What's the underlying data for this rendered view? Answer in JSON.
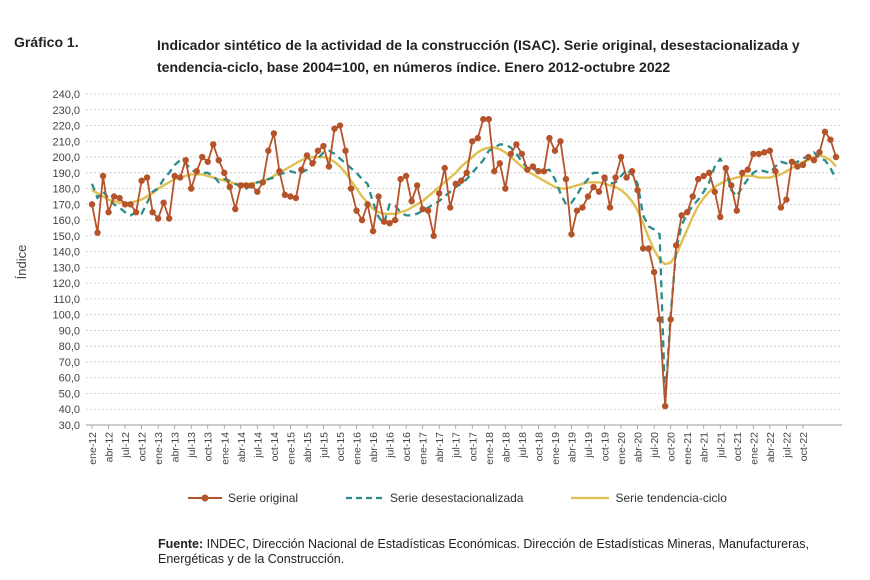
{
  "header": {
    "figure_label": "Gráfico 1.",
    "title": "Indicador sintético de la actividad de la construcción (ISAC). Serie original, desestacionalizada y tendencia-ciclo, base 2004=100, en números índice. Enero 2012-octubre 2022"
  },
  "footer": {
    "source_label": "Fuente:",
    "source_text": " INDEC, Dirección Nacional de Estadísticas Económicas. Dirección de Estadísticas Mineras, Manufactureras, Energéticas y de la Construcción."
  },
  "chart_data": {
    "type": "line",
    "title": "Indicador sintético de la actividad de la construcción (ISAC). Serie original, desestacionalizada y tendencia-ciclo, base 2004=100, en números índice. Enero 2012-octubre 2022",
    "ylabel": "Índice",
    "xlabel": "",
    "ylim": [
      30,
      240
    ],
    "ytick_step": 10,
    "grid": true,
    "legend_position": "bottom",
    "x_tick_labels": [
      "ene-12",
      "abr-12",
      "jul-12",
      "oct-12",
      "ene-13",
      "abr-13",
      "jul-13",
      "oct-13",
      "ene-14",
      "abr-14",
      "jul-14",
      "oct-14",
      "ene-15",
      "abr-15",
      "jul-15",
      "oct-15",
      "ene-16",
      "abr-16",
      "jul-16",
      "oct-16",
      "ene-17",
      "abr-17",
      "jul-17",
      "oct-17",
      "ene-18",
      "abr-18",
      "jul-18",
      "oct-18",
      "ene-19",
      "abr-19",
      "jul-19",
      "oct-19",
      "ene-20",
      "abr-20",
      "jul-20",
      "oct-20",
      "ene-21",
      "abr-21",
      "jul-21",
      "oct-21",
      "ene-22",
      "abr-22",
      "jul-22",
      "oct-22"
    ],
    "series": [
      {
        "name": "Serie original",
        "color": "#b5532a",
        "style": "solid-markers",
        "values": [
          170,
          152,
          188,
          165,
          175,
          174,
          170,
          170,
          165,
          185,
          187,
          165,
          161,
          171,
          161,
          188,
          187,
          198,
          180,
          191,
          200,
          197,
          208,
          198,
          190,
          181,
          167,
          182,
          182,
          182,
          178,
          184,
          204,
          215,
          191,
          176,
          175,
          174,
          192,
          201,
          196,
          204,
          207,
          194,
          218,
          220,
          204,
          180,
          166,
          160,
          170,
          153,
          175,
          159,
          158,
          160,
          186,
          188,
          172,
          182,
          167,
          166,
          150,
          177,
          193,
          168,
          183,
          185,
          190,
          210,
          212,
          224,
          224,
          191,
          196,
          180,
          202,
          208,
          202,
          192,
          194,
          191,
          191,
          212,
          204,
          210,
          186,
          151,
          166,
          168,
          175,
          181,
          178,
          187,
          168,
          187,
          200,
          187,
          191,
          179,
          142,
          142,
          127,
          97,
          42,
          97,
          144,
          163,
          165,
          175,
          186,
          188,
          190,
          178,
          162,
          193,
          182,
          166,
          190,
          192,
          202,
          202,
          203,
          204,
          191,
          168,
          173,
          197,
          194,
          195,
          200,
          198,
          203,
          216,
          211,
          200
        ]
      },
      {
        "name": "Serie desestacionalizada",
        "color": "#2a8c8c",
        "style": "dashed",
        "values": [
          183,
          174,
          178,
          174,
          170,
          168,
          165,
          163,
          165,
          164,
          171,
          178,
          180,
          186,
          190,
          195,
          198,
          196,
          192,
          190,
          190,
          190,
          188,
          184,
          186,
          185,
          183,
          181,
          180,
          182,
          184,
          184,
          186,
          187,
          189,
          190,
          191,
          190,
          190,
          192,
          195,
          199,
          203,
          204,
          202,
          199,
          196,
          193,
          190,
          186,
          183,
          171,
          162,
          158,
          170,
          169,
          165,
          163,
          163,
          164,
          166,
          168,
          170,
          172,
          175,
          178,
          181,
          183,
          186,
          190,
          194,
          198,
          204,
          206,
          208,
          208,
          206,
          202,
          197,
          193,
          192,
          192,
          191,
          192,
          186,
          177,
          170,
          171,
          176,
          182,
          186,
          190,
          190,
          187,
          183,
          184,
          188,
          192,
          189,
          183,
          163,
          156,
          154,
          151,
          45,
          100,
          141,
          157,
          164,
          169,
          173,
          178,
          184,
          194,
          199,
          192,
          179,
          175,
          181,
          186,
          190,
          192,
          191,
          190,
          194,
          197,
          196,
          196,
          197,
          199,
          201,
          203,
          199,
          198,
          193,
          186
        ]
      },
      {
        "name": "Serie tendencia-ciclo",
        "color": "#e0c050",
        "style": "solid",
        "values": [
          179,
          177,
          175,
          173,
          172,
          171,
          171,
          171,
          172,
          173,
          175,
          177,
          180,
          182,
          184,
          186,
          187,
          188,
          189,
          189,
          189,
          188,
          187,
          186,
          185,
          184,
          183,
          183,
          183,
          183,
          184,
          185,
          186,
          188,
          190,
          192,
          194,
          196,
          198,
          199,
          200,
          200,
          200,
          199,
          197,
          194,
          190,
          185,
          180,
          175,
          171,
          167,
          165,
          164,
          164,
          164,
          165,
          166,
          168,
          170,
          172,
          175,
          178,
          181,
          184,
          187,
          190,
          194,
          197,
          200,
          203,
          205,
          206,
          206,
          205,
          203,
          200,
          197,
          194,
          191,
          189,
          187,
          185,
          183,
          181,
          180,
          180,
          181,
          182,
          183,
          184,
          184,
          184,
          183,
          182,
          181,
          179,
          176,
          172,
          166,
          158,
          149,
          141,
          135,
          132,
          133,
          138,
          146,
          154,
          162,
          169,
          174,
          178,
          181,
          183,
          185,
          186,
          187,
          188,
          188,
          188,
          187,
          187,
          187,
          188,
          189,
          191,
          193,
          195,
          197,
          198,
          200,
          201,
          200,
          198,
          194
        ]
      }
    ]
  }
}
